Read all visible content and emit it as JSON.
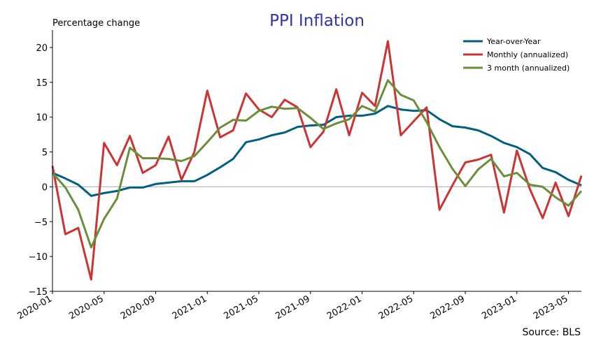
{
  "chart_data": {
    "type": "line",
    "title": "PPI Inflation",
    "ylabel": "Percentage change",
    "xlabel": "",
    "source": "Source: BLS",
    "ylim": [
      -15,
      22.5
    ],
    "yticks": [
      -15,
      -10,
      -5,
      0,
      5,
      10,
      15,
      20
    ],
    "ytick_labels": [
      "−15",
      "−10",
      "−5",
      "0",
      "5",
      "10",
      "15",
      "20"
    ],
    "xtick_labels": [
      "2020-01",
      "2020-05",
      "2020-09",
      "2021-01",
      "2021-05",
      "2021-09",
      "2022-01",
      "2022-05",
      "2022-09",
      "2023-01",
      "2023-05"
    ],
    "xtick_month_index": [
      0,
      4,
      8,
      12,
      16,
      20,
      24,
      28,
      32,
      36,
      40
    ],
    "x": [
      "2020-01",
      "2020-02",
      "2020-03",
      "2020-04",
      "2020-05",
      "2020-06",
      "2020-07",
      "2020-08",
      "2020-09",
      "2020-10",
      "2020-11",
      "2020-12",
      "2021-01",
      "2021-02",
      "2021-03",
      "2021-04",
      "2021-05",
      "2021-06",
      "2021-07",
      "2021-08",
      "2021-09",
      "2021-10",
      "2021-11",
      "2021-12",
      "2022-01",
      "2022-02",
      "2022-03",
      "2022-04",
      "2022-05",
      "2022-06",
      "2022-07",
      "2022-08",
      "2022-09",
      "2022-10",
      "2022-11",
      "2022-12",
      "2023-01",
      "2023-02",
      "2023-03",
      "2023-04",
      "2023-05",
      "2023-06"
    ],
    "legend_position": "top-right",
    "grid": false,
    "series": [
      {
        "name": "Year-over-Year",
        "color": "#006080",
        "values": [
          2.0,
          1.2,
          0.3,
          -1.3,
          -0.9,
          -0.6,
          -0.1,
          -0.1,
          0.4,
          0.6,
          0.8,
          0.8,
          1.7,
          2.8,
          4.0,
          6.4,
          6.8,
          7.4,
          7.8,
          8.6,
          8.8,
          8.9,
          10.0,
          10.2,
          10.2,
          10.5,
          11.6,
          11.1,
          10.9,
          11.0,
          9.7,
          8.7,
          8.5,
          8.1,
          7.3,
          6.3,
          5.7,
          4.7,
          2.7,
          2.1,
          1.0,
          0.2
        ]
      },
      {
        "name": "Monthly (annualized)",
        "color": "#cc3333",
        "values": [
          3.0,
          -6.8,
          -5.9,
          -13.3,
          6.3,
          3.1,
          7.3,
          2.0,
          3.1,
          7.2,
          1.0,
          5.0,
          13.8,
          7.1,
          8.1,
          13.4,
          11.1,
          10.0,
          12.5,
          11.4,
          5.7,
          7.9,
          14.0,
          7.4,
          13.5,
          11.6,
          20.9,
          7.4,
          9.4,
          11.4,
          -3.3,
          0.2,
          3.5,
          3.9,
          4.6,
          -3.7,
          5.2,
          -0.3,
          -4.5,
          0.6,
          -4.2,
          1.6
        ]
      },
      {
        "name": "3 month (annualized)",
        "color": "#6b8e3a",
        "values": [
          2.0,
          -0.1,
          -3.3,
          -8.7,
          -4.6,
          -1.7,
          5.6,
          4.1,
          4.1,
          4.0,
          3.7,
          4.4,
          6.4,
          8.5,
          9.6,
          9.5,
          10.9,
          11.5,
          11.2,
          11.3,
          9.9,
          8.3,
          9.1,
          9.7,
          11.6,
          10.8,
          15.3,
          13.2,
          12.4,
          9.3,
          5.7,
          2.6,
          0.1,
          2.5,
          4.0,
          1.5,
          2.0,
          0.3,
          0.0,
          -1.5,
          -2.7,
          -0.6
        ]
      }
    ]
  }
}
